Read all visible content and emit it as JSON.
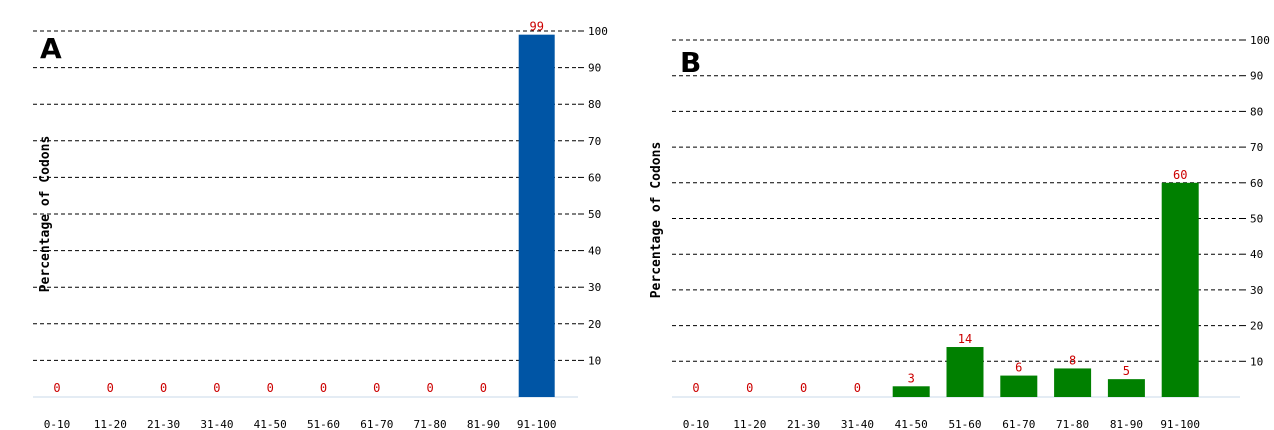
{
  "chart_data": [
    {
      "type": "bar",
      "panel_label": "A",
      "ylabel": "Percentage of Codons",
      "categories": [
        "0-10",
        "11-20",
        "21-30",
        "31-40",
        "41-50",
        "51-60",
        "61-70",
        "71-80",
        "81-90",
        "91-100"
      ],
      "values": [
        0,
        0,
        0,
        0,
        0,
        0,
        0,
        0,
        0,
        99
      ],
      "yticks": [
        10,
        20,
        30,
        40,
        50,
        60,
        70,
        80,
        90,
        100
      ],
      "ylim": [
        0,
        100
      ],
      "y_axis_position": "right",
      "grid": true,
      "bar_color": "#0055a5",
      "label_color": "#cc0000"
    },
    {
      "type": "bar",
      "panel_label": "B",
      "ylabel": "Percentage of Codons",
      "categories": [
        "0-10",
        "11-20",
        "21-30",
        "31-40",
        "41-50",
        "51-60",
        "61-70",
        "71-80",
        "81-90",
        "91-100"
      ],
      "values": [
        0,
        0,
        0,
        0,
        3,
        14,
        6,
        8,
        5,
        60
      ],
      "yticks": [
        10,
        20,
        30,
        40,
        50,
        60,
        70,
        80,
        90,
        100
      ],
      "ylim": [
        0,
        100
      ],
      "y_axis_position": "right",
      "grid": true,
      "bar_color": "#008000",
      "label_color": "#cc0000"
    }
  ]
}
